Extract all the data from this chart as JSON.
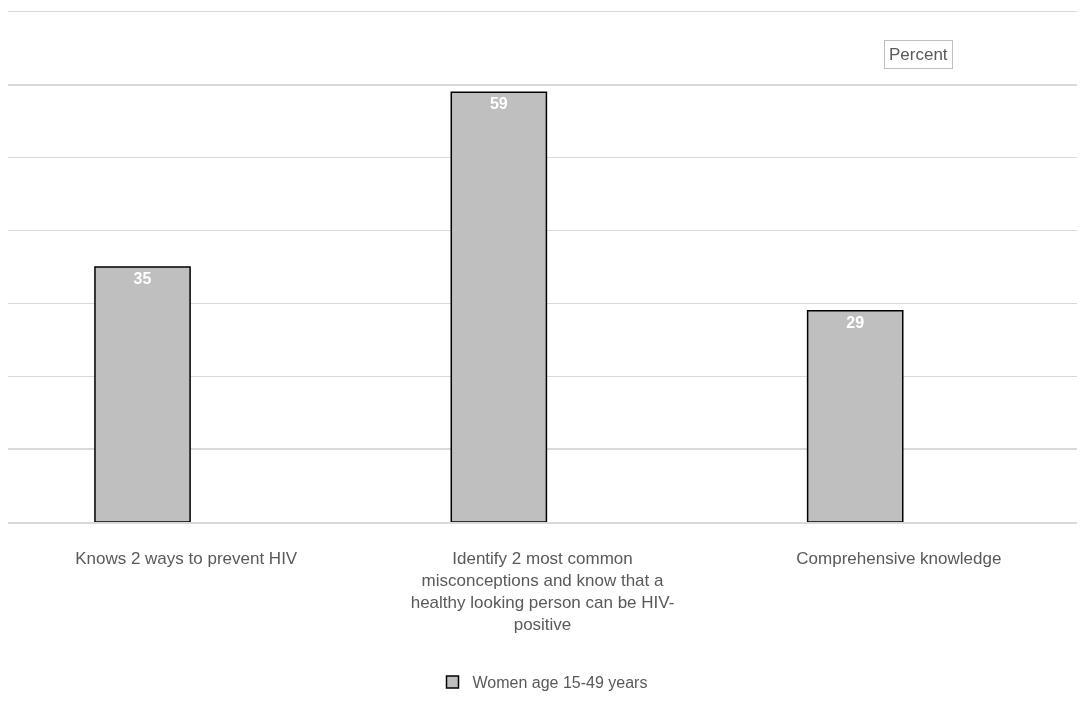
{
  "chart_data": {
    "type": "bar",
    "categories": [
      "Knows 2 ways to prevent HIV",
      "Identify 2 most common misconceptions and know that a healthy looking person can be HIV-positive",
      "Comprehensive knowledge"
    ],
    "series": [
      {
        "name": "Women age 15-49 years",
        "color": "#bfbfbf",
        "values": [
          35,
          59,
          29
        ]
      }
    ],
    "ylim": [
      0,
      70
    ],
    "yticks": [
      {
        "value": 0,
        "label": null
      },
      {
        "value": 10,
        "label": null
      },
      {
        "value": 20,
        "label": null
      },
      {
        "value": 30,
        "label": null
      },
      {
        "value": 40,
        "label": null
      },
      {
        "value": 50,
        "label": null
      },
      {
        "value": 60,
        "label": null
      },
      {
        "value": 70,
        "label": null
      }
    ],
    "tick_labels": "x",
    "grid": "y",
    "legend": "bottom",
    "data_labels": true,
    "annotations": [
      "Percent"
    ]
  }
}
